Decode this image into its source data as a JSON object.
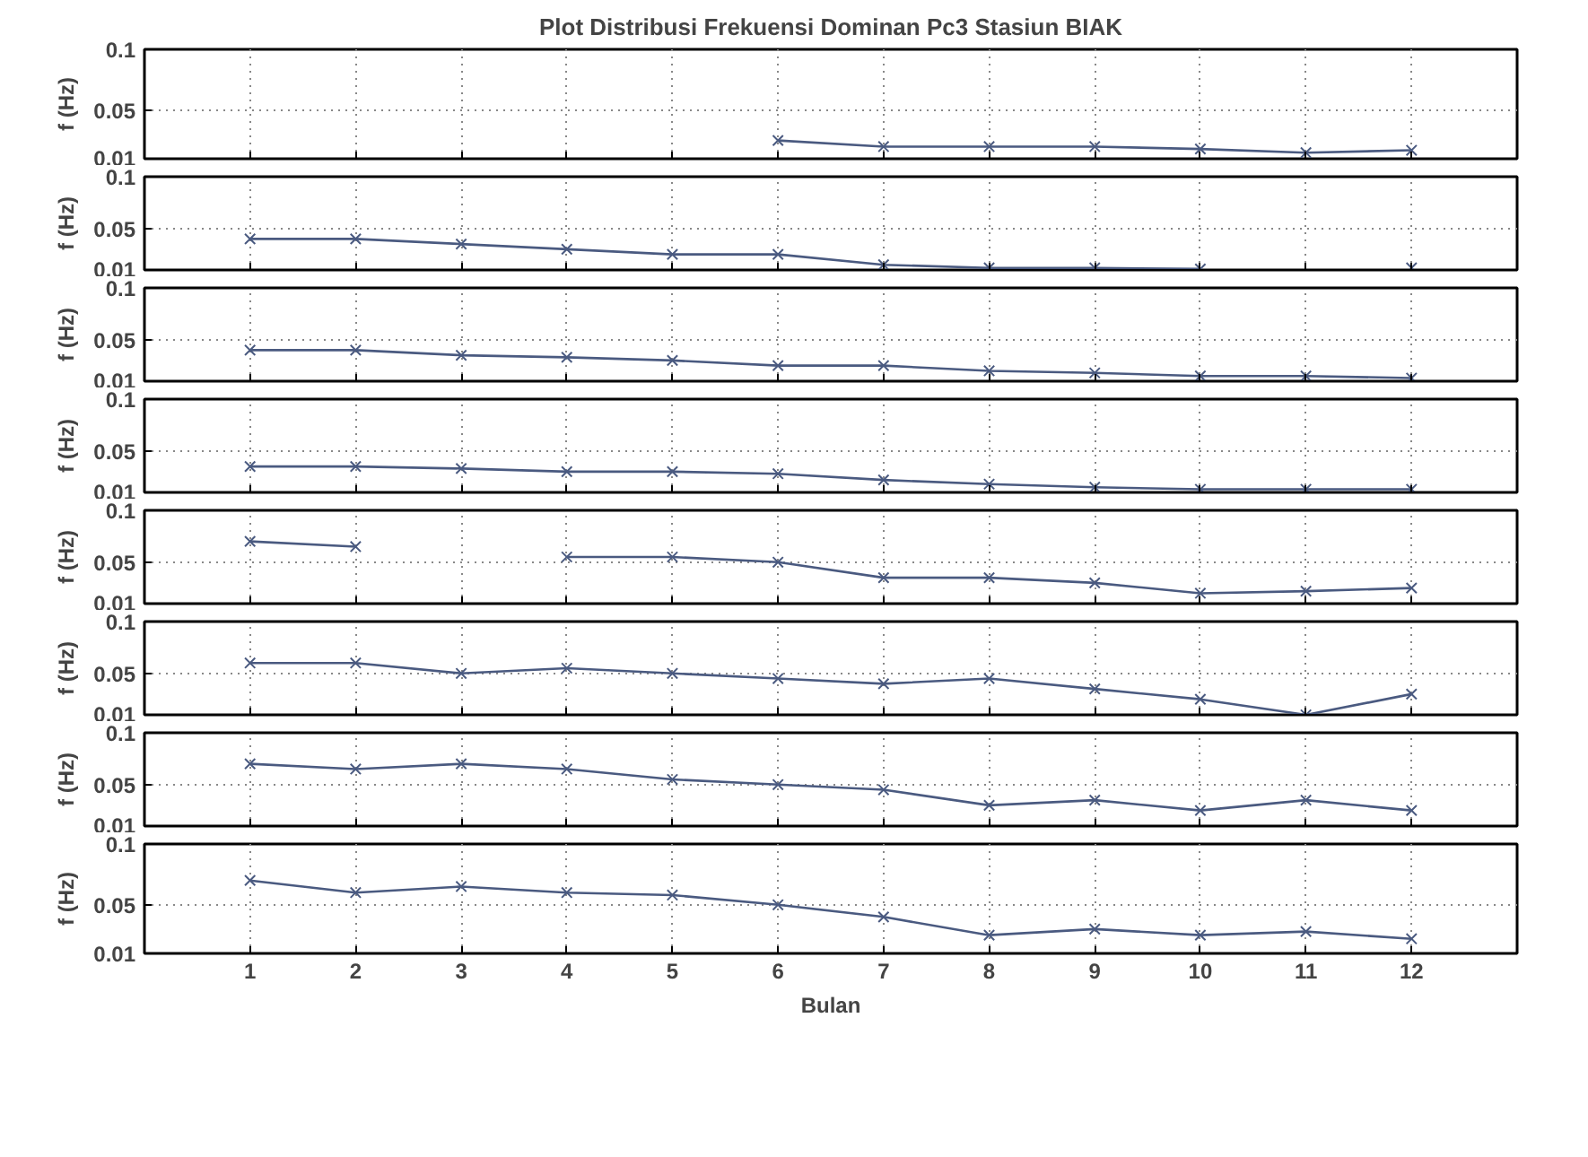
{
  "chart_data": [
    {
      "type": "line",
      "title": "Plot Distribusi Frekuensi Dominan Pc3 Stasiun BIAK",
      "ylabel": "f (Hz)",
      "x": [
        6,
        7,
        8,
        9,
        10,
        11,
        12
      ],
      "values": [
        0.025,
        0.02,
        0.02,
        0.02,
        0.018,
        0.015,
        0.017
      ],
      "color": "#4a5a80",
      "marker": "cross",
      "grid": true,
      "xlim": [
        0,
        13
      ],
      "ylim": [
        0.01,
        0.1
      ],
      "yticks": [
        0.01,
        0.05,
        0.1
      ],
      "xticks": [
        1,
        2,
        3,
        4,
        5,
        6,
        7,
        8,
        9,
        10,
        11,
        12
      ],
      "tick_labels": "y"
    },
    {
      "type": "line",
      "ylabel": "f (Hz)",
      "x": [
        1,
        2,
        3,
        4,
        5,
        6,
        7,
        8,
        9,
        10,
        11,
        12
      ],
      "values": [
        0.04,
        0.04,
        0.035,
        0.03,
        0.025,
        0.025,
        0.015,
        0.012,
        0.012,
        0.011,
        null,
        0.012
      ],
      "color": "#4a5a80",
      "marker": "cross",
      "grid": true,
      "xlim": [
        0,
        13
      ],
      "ylim": [
        0.01,
        0.1
      ],
      "yticks": [
        0.01,
        0.05,
        0.1
      ],
      "xticks": [
        1,
        2,
        3,
        4,
        5,
        6,
        7,
        8,
        9,
        10,
        11,
        12
      ],
      "tick_labels": "y"
    },
    {
      "type": "line",
      "ylabel": "f (Hz)",
      "x": [
        1,
        2,
        3,
        4,
        5,
        6,
        7,
        8,
        9,
        10,
        11,
        12
      ],
      "values": [
        0.04,
        0.04,
        0.035,
        0.033,
        0.03,
        0.025,
        0.025,
        0.02,
        0.018,
        0.015,
        0.015,
        0.013
      ],
      "color": "#4a5a80",
      "marker": "cross",
      "grid": true,
      "xlim": [
        0,
        13
      ],
      "ylim": [
        0.01,
        0.1
      ],
      "yticks": [
        0.01,
        0.05,
        0.1
      ],
      "xticks": [
        1,
        2,
        3,
        4,
        5,
        6,
        7,
        8,
        9,
        10,
        11,
        12
      ],
      "tick_labels": "y"
    },
    {
      "type": "line",
      "ylabel": "f (Hz)",
      "x": [
        1,
        2,
        3,
        4,
        5,
        6,
        7,
        8,
        9,
        10,
        11,
        12
      ],
      "values": [
        0.035,
        0.035,
        0.033,
        0.03,
        0.03,
        0.028,
        0.022,
        0.018,
        0.015,
        0.013,
        0.013,
        0.013
      ],
      "color": "#4a5a80",
      "marker": "cross",
      "grid": true,
      "xlim": [
        0,
        13
      ],
      "ylim": [
        0.01,
        0.1
      ],
      "yticks": [
        0.01,
        0.05,
        0.1
      ],
      "xticks": [
        1,
        2,
        3,
        4,
        5,
        6,
        7,
        8,
        9,
        10,
        11,
        12
      ],
      "tick_labels": "y"
    },
    {
      "type": "line",
      "ylabel": "f (Hz)",
      "x": [
        1,
        2,
        3,
        4,
        5,
        6,
        7,
        8,
        9,
        10,
        11,
        12
      ],
      "values": [
        0.07,
        0.065,
        null,
        0.055,
        0.055,
        0.05,
        0.035,
        0.035,
        0.03,
        0.02,
        0.022,
        0.025
      ],
      "color": "#4a5a80",
      "marker": "cross",
      "grid": true,
      "xlim": [
        0,
        13
      ],
      "ylim": [
        0.01,
        0.1
      ],
      "yticks": [
        0.01,
        0.05,
        0.1
      ],
      "xticks": [
        1,
        2,
        3,
        4,
        5,
        6,
        7,
        8,
        9,
        10,
        11,
        12
      ],
      "tick_labels": "y"
    },
    {
      "type": "line",
      "ylabel": "f (Hz)",
      "x": [
        1,
        2,
        3,
        4,
        5,
        6,
        7,
        8,
        9,
        10,
        11,
        12
      ],
      "values": [
        0.06,
        0.06,
        0.05,
        0.055,
        0.05,
        0.045,
        0.04,
        0.045,
        0.035,
        0.025,
        0.01,
        0.03
      ],
      "color": "#4a5a80",
      "marker": "cross",
      "grid": true,
      "xlim": [
        0,
        13
      ],
      "ylim": [
        0.01,
        0.1
      ],
      "yticks": [
        0.01,
        0.05,
        0.1
      ],
      "xticks": [
        1,
        2,
        3,
        4,
        5,
        6,
        7,
        8,
        9,
        10,
        11,
        12
      ],
      "tick_labels": "y"
    },
    {
      "type": "line",
      "ylabel": "f (Hz)",
      "x": [
        1,
        2,
        3,
        4,
        5,
        6,
        7,
        8,
        9,
        10,
        11,
        12
      ],
      "values": [
        0.07,
        0.065,
        0.07,
        0.065,
        0.055,
        0.05,
        0.045,
        0.03,
        0.035,
        0.025,
        0.035,
        0.025
      ],
      "color": "#4a5a80",
      "marker": "cross",
      "grid": true,
      "xlim": [
        0,
        13
      ],
      "ylim": [
        0.01,
        0.1
      ],
      "yticks": [
        0.01,
        0.05,
        0.1
      ],
      "xticks": [
        1,
        2,
        3,
        4,
        5,
        6,
        7,
        8,
        9,
        10,
        11,
        12
      ],
      "tick_labels": "y"
    },
    {
      "type": "line",
      "ylabel": "f (Hz)",
      "xlabel": "Bulan",
      "x": [
        1,
        2,
        3,
        4,
        5,
        6,
        7,
        8,
        9,
        10,
        11,
        12
      ],
      "values": [
        0.07,
        0.06,
        0.065,
        0.06,
        0.058,
        0.05,
        0.04,
        0.025,
        0.03,
        0.025,
        0.028,
        0.022
      ],
      "color": "#4a5a80",
      "marker": "cross",
      "grid": true,
      "xlim": [
        0,
        13
      ],
      "ylim": [
        0.01,
        0.1
      ],
      "yticks": [
        0.01,
        0.05,
        0.1
      ],
      "xticks": [
        1,
        2,
        3,
        4,
        5,
        6,
        7,
        8,
        9,
        10,
        11,
        12
      ]
    }
  ]
}
